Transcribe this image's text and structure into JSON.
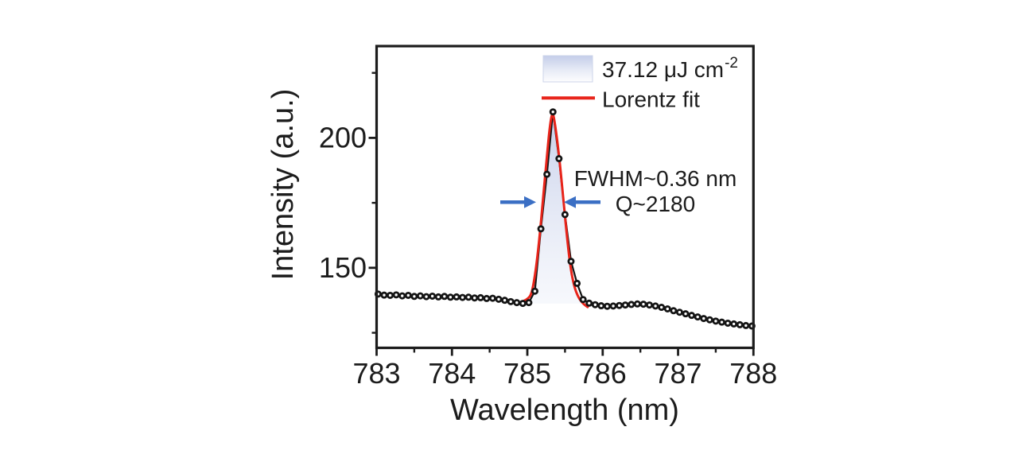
{
  "page": {
    "background": "#ffffff"
  },
  "axes": {
    "x": {
      "title": "Wavelength (nm)",
      "tick_labels": [
        "783",
        "784",
        "785",
        "786",
        "787",
        "788"
      ],
      "tick_values": [
        783,
        784,
        785,
        786,
        787,
        788
      ],
      "minor_ticks": [
        783.5,
        784.5,
        785.5,
        786.5,
        787.5
      ]
    },
    "y": {
      "title": "Intensity (a.u.)",
      "tick_labels": [
        "150",
        "200"
      ],
      "tick_values": [
        150,
        200
      ],
      "minor_ticks": [
        125,
        175,
        225
      ]
    }
  },
  "legend": {
    "items": [
      {
        "swatch": "gradient",
        "label": "37.12 μJ cm",
        "label_sup": "-2"
      },
      {
        "swatch": "red-line",
        "label": "Lorentz fit"
      }
    ]
  },
  "annotations": {
    "fwhm": "FWHM~0.36 nm",
    "q": "Q~2180"
  },
  "colors": {
    "axis": "#1c1c1c",
    "text": "#1c1c1c",
    "data_points": "#141414",
    "fit_line": "#e8241a",
    "arrows": "#3b6fc4",
    "fill_top": "#c4cde9",
    "fill_bottom": "#f2f5fb"
  },
  "chart_data": {
    "type": "scatter",
    "title": "",
    "xlabel": "Wavelength (nm)",
    "ylabel": "Intensity (a.u.)",
    "xlim": [
      783,
      788
    ],
    "ylim": [
      119.2,
      235.3
    ],
    "x_unit": "nm",
    "legend_position": "top-right-inside",
    "series": [
      {
        "name": "emission spectrum at 37.12 uJ cm^-2",
        "type": "scatter+line",
        "x": [
          783.02,
          783.1,
          783.18,
          783.26,
          783.34,
          783.42,
          783.5,
          783.58,
          783.66,
          783.74,
          783.82,
          783.9,
          783.98,
          784.06,
          784.14,
          784.22,
          784.3,
          784.38,
          784.46,
          784.54,
          784.62,
          784.7,
          784.78,
          784.86,
          784.94,
          785.02,
          785.1,
          785.18,
          785.26,
          785.34,
          785.42,
          785.5,
          785.58,
          785.66,
          785.74,
          785.82,
          785.9,
          785.98,
          786.06,
          786.14,
          786.22,
          786.3,
          786.38,
          786.46,
          786.54,
          786.62,
          786.7,
          786.78,
          786.86,
          786.94,
          787.02,
          787.1,
          787.18,
          787.26,
          787.34,
          787.42,
          787.5,
          787.58,
          787.66,
          787.74,
          787.82,
          787.9,
          787.98
        ],
        "y": [
          139.9,
          139.5,
          139.4,
          139.6,
          139.2,
          139.4,
          139.0,
          139.2,
          138.9,
          139.1,
          138.8,
          139.0,
          138.7,
          138.8,
          138.6,
          138.7,
          138.4,
          138.5,
          138.2,
          138.3,
          137.9,
          137.5,
          137.0,
          136.6,
          136.3,
          136.6,
          141.0,
          165.0,
          186.0,
          210.0,
          192.0,
          170.5,
          152.5,
          144.0,
          137.8,
          136.4,
          135.8,
          135.4,
          135.2,
          135.3,
          135.5,
          135.7,
          135.9,
          136.1,
          136.0,
          135.7,
          135.3,
          134.8,
          134.2,
          133.5,
          132.9,
          132.3,
          131.7,
          131.1,
          130.5,
          130.0,
          129.5,
          129.1,
          128.7,
          128.4,
          128.1,
          127.8,
          127.6
        ]
      },
      {
        "name": "Lorentz fit",
        "type": "line",
        "x": [
          784.95,
          785.01,
          785.06,
          785.11,
          785.16,
          785.21,
          785.26,
          785.3,
          785.335,
          785.37,
          785.42,
          785.47,
          785.52,
          785.57,
          785.62,
          785.68,
          785.74,
          785.8
        ],
        "y": [
          137.2,
          138.0,
          140.2,
          148.5,
          161.0,
          177.0,
          193.0,
          205.0,
          210.4,
          205.0,
          193.5,
          179.0,
          163.5,
          150.5,
          142.8,
          138.4,
          136.2,
          134.9
        ]
      }
    ],
    "shaded_peak_region": {
      "x_from": 785.06,
      "x_to": 785.74,
      "baseline": 136.2
    },
    "peak": {
      "center_nm": 785.34,
      "fwhm_nm": 0.36,
      "q_factor": 2180,
      "peak_intensity": 210
    }
  }
}
